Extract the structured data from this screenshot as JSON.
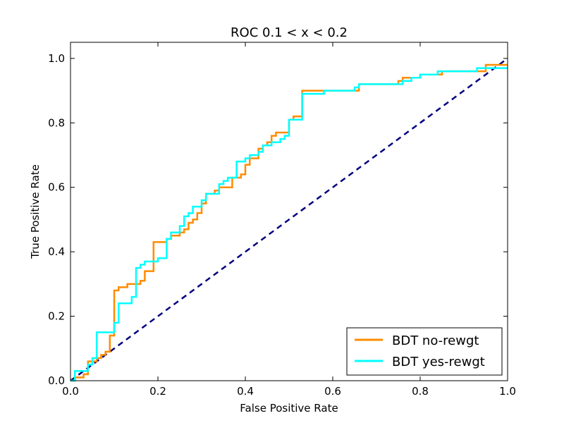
{
  "chart_data": {
    "type": "line",
    "title": "ROC 0.1 < x < 0.2",
    "xlabel": "False Positive Rate",
    "ylabel": "True Positive Rate",
    "xlim": [
      0.0,
      1.0
    ],
    "ylim": [
      0.0,
      1.05
    ],
    "xticks": [
      "0.0",
      "0.2",
      "0.4",
      "0.6",
      "0.8",
      "1.0"
    ],
    "yticks": [
      "0.0",
      "0.2",
      "0.4",
      "0.6",
      "0.8",
      "1.0"
    ],
    "grid": false,
    "legend_position": "lower-right",
    "series": [
      {
        "name": "BDT no-rewgt",
        "color": "#ff8c00",
        "style": "step",
        "x": [
          0.0,
          0.01,
          0.03,
          0.04,
          0.06,
          0.07,
          0.08,
          0.09,
          0.1,
          0.11,
          0.13,
          0.15,
          0.16,
          0.17,
          0.18,
          0.19,
          0.2,
          0.21,
          0.22,
          0.23,
          0.24,
          0.25,
          0.26,
          0.27,
          0.28,
          0.29,
          0.3,
          0.31,
          0.33,
          0.34,
          0.35,
          0.37,
          0.38,
          0.39,
          0.4,
          0.41,
          0.42,
          0.43,
          0.44,
          0.45,
          0.46,
          0.47,
          0.48,
          0.5,
          0.51,
          0.52,
          0.53,
          0.54,
          0.58,
          0.6,
          0.66,
          0.67,
          0.75,
          0.76,
          0.8,
          0.85,
          0.92,
          0.94,
          0.95,
          1.0
        ],
        "y": [
          0.0,
          0.01,
          0.02,
          0.06,
          0.07,
          0.08,
          0.09,
          0.14,
          0.28,
          0.29,
          0.3,
          0.3,
          0.31,
          0.34,
          0.34,
          0.43,
          0.43,
          0.43,
          0.44,
          0.45,
          0.45,
          0.46,
          0.47,
          0.49,
          0.5,
          0.52,
          0.55,
          0.58,
          0.59,
          0.6,
          0.6,
          0.63,
          0.63,
          0.64,
          0.67,
          0.69,
          0.69,
          0.72,
          0.73,
          0.74,
          0.76,
          0.77,
          0.77,
          0.81,
          0.82,
          0.82,
          0.9,
          0.9,
          0.9,
          0.9,
          0.92,
          0.92,
          0.93,
          0.94,
          0.95,
          0.96,
          0.96,
          0.96,
          0.98,
          0.98
        ]
      },
      {
        "name": "BDT yes-rewgt",
        "color": "#00ffff",
        "style": "step",
        "x": [
          0.0,
          0.01,
          0.02,
          0.04,
          0.05,
          0.06,
          0.09,
          0.1,
          0.11,
          0.14,
          0.15,
          0.16,
          0.17,
          0.2,
          0.22,
          0.23,
          0.25,
          0.26,
          0.27,
          0.28,
          0.3,
          0.31,
          0.33,
          0.34,
          0.35,
          0.36,
          0.37,
          0.38,
          0.4,
          0.41,
          0.42,
          0.43,
          0.44,
          0.45,
          0.46,
          0.48,
          0.49,
          0.5,
          0.51,
          0.53,
          0.58,
          0.6,
          0.65,
          0.66,
          0.72,
          0.76,
          0.78,
          0.8,
          0.84,
          0.9,
          0.93,
          0.96,
          1.0
        ],
        "y": [
          0.0,
          0.03,
          0.03,
          0.05,
          0.07,
          0.15,
          0.15,
          0.18,
          0.24,
          0.26,
          0.35,
          0.36,
          0.37,
          0.38,
          0.44,
          0.46,
          0.48,
          0.51,
          0.52,
          0.54,
          0.56,
          0.58,
          0.58,
          0.61,
          0.62,
          0.63,
          0.63,
          0.68,
          0.69,
          0.7,
          0.7,
          0.71,
          0.73,
          0.73,
          0.74,
          0.75,
          0.76,
          0.81,
          0.81,
          0.89,
          0.9,
          0.9,
          0.91,
          0.92,
          0.92,
          0.93,
          0.94,
          0.95,
          0.96,
          0.96,
          0.97,
          0.97,
          0.97
        ]
      },
      {
        "name": "",
        "color": "#000080",
        "style": "dashed",
        "x": [
          0.0,
          1.0
        ],
        "y": [
          0.0,
          1.0
        ]
      }
    ]
  }
}
